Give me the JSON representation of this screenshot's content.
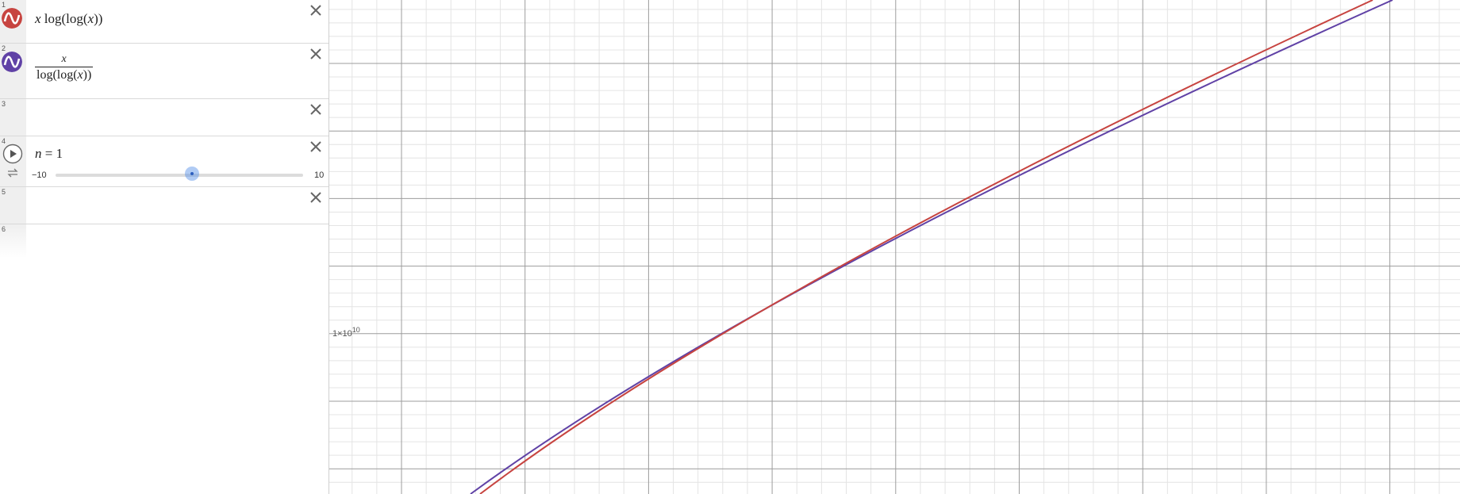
{
  "expressions": [
    {
      "index": "1",
      "color": "#c74440",
      "icon": "graph-wave-icon",
      "parts": {
        "a": "x",
        "b": "log(log(",
        "c": "x",
        "d": "))"
      }
    },
    {
      "index": "2",
      "color": "#6042a6",
      "icon": "graph-wave-icon",
      "parts": {
        "num": "x",
        "den_a": "log(log(",
        "den_b": "x",
        "den_c": "))"
      }
    },
    {
      "index": "3"
    },
    {
      "index": "4",
      "slider": {
        "var": "n",
        "eq": " = ",
        "value": "1",
        "min": "−10",
        "max": "10",
        "fraction": 0.55
      }
    },
    {
      "index": "5"
    },
    {
      "index": "6"
    }
  ],
  "graph": {
    "y_tick_label": "1×10",
    "y_tick_exp": "10",
    "grid_major_color": "#9c9c9c",
    "grid_minor_color": "#e4e4e4",
    "curve1_color": "#c74440",
    "curve2_color": "#6042a6"
  }
}
